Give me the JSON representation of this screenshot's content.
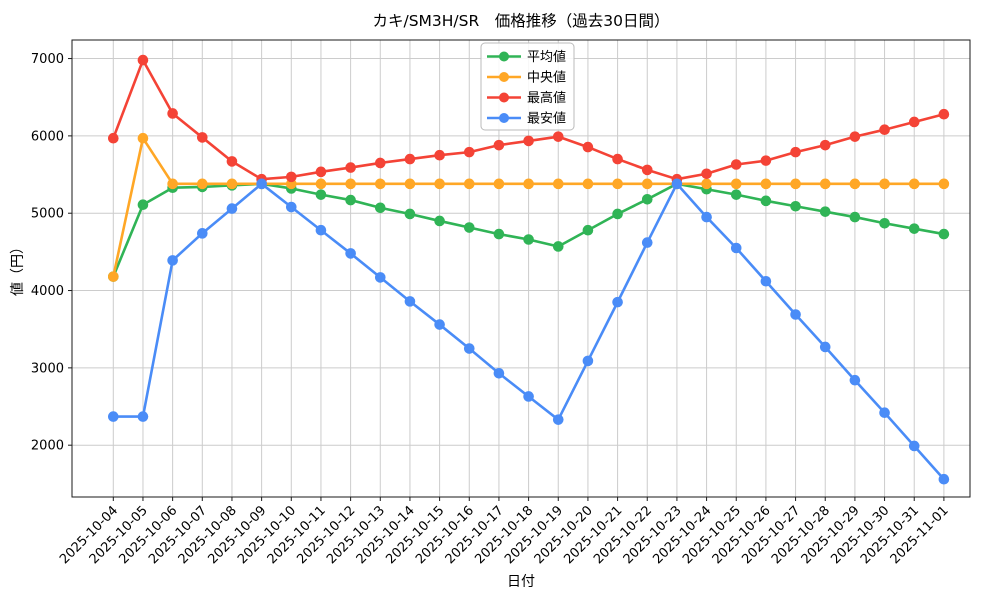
{
  "chart_data": {
    "type": "line",
    "title": "カキ/SM3H/SR　価格推移（過去30日間）",
    "xlabel": "日付",
    "ylabel": "値（円）",
    "categories": [
      "2025-10-04",
      "2025-10-05",
      "2025-10-06",
      "2025-10-07",
      "2025-10-08",
      "2025-10-09",
      "2025-10-10",
      "2025-10-11",
      "2025-10-12",
      "2025-10-13",
      "2025-10-14",
      "2025-10-15",
      "2025-10-16",
      "2025-10-17",
      "2025-10-18",
      "2025-10-19",
      "2025-10-20",
      "2025-10-21",
      "2025-10-22",
      "2025-10-23",
      "2025-10-24",
      "2025-10-25",
      "2025-10-26",
      "2025-10-27",
      "2025-10-28",
      "2025-10-29",
      "2025-10-30",
      "2025-10-31",
      "2025-11-01"
    ],
    "series": [
      {
        "id": "average",
        "name": "平均値",
        "color": "#30b456",
        "values": [
          4180,
          5110,
          5330,
          5340,
          5360,
          5380,
          5320,
          5240,
          5170,
          5070,
          4990,
          4900,
          4815,
          4730,
          4660,
          4570,
          4780,
          4990,
          5180,
          5380,
          5310,
          5240,
          5160,
          5090,
          5020,
          4950,
          4870,
          4800,
          4730
        ]
      },
      {
        "id": "median",
        "name": "中央値",
        "color": "#ffa726",
        "values": [
          4180,
          5970,
          5380,
          5380,
          5380,
          5380,
          5380,
          5380,
          5380,
          5380,
          5380,
          5380,
          5380,
          5380,
          5380,
          5380,
          5380,
          5380,
          5380,
          5380,
          5380,
          5380,
          5380,
          5380,
          5380,
          5380,
          5380,
          5380,
          5380
        ]
      },
      {
        "id": "max",
        "name": "最高値",
        "color": "#f44336",
        "values": [
          5970,
          6980,
          6290,
          5980,
          5670,
          5440,
          5470,
          5535,
          5590,
          5650,
          5700,
          5750,
          5790,
          5880,
          5935,
          5990,
          5855,
          5700,
          5560,
          5440,
          5510,
          5630,
          5680,
          5790,
          5880,
          5990,
          6080,
          6180,
          6280
        ]
      },
      {
        "id": "min",
        "name": "最安値",
        "color": "#4a8cf7",
        "values": [
          2370,
          2370,
          4390,
          4740,
          5060,
          5380,
          5080,
          4780,
          4480,
          4170,
          3860,
          3560,
          3250,
          2930,
          2630,
          2330,
          3090,
          3850,
          4620,
          5380,
          4950,
          4550,
          4120,
          3690,
          3270,
          2840,
          2420,
          1990,
          1560
        ]
      }
    ],
    "yticks": [
      2000,
      3000,
      4000,
      5000,
      6000,
      7000
    ],
    "ylim": [
      1330,
      7240
    ],
    "grid": true,
    "legend": {
      "position": "upper-center-left"
    }
  },
  "style": {
    "grid_color": "#cccccc",
    "axis_color": "#1a1a1a",
    "text_color": "#000000",
    "legend_border": "#bbbbbb",
    "legend_bg": "#ffffff"
  }
}
